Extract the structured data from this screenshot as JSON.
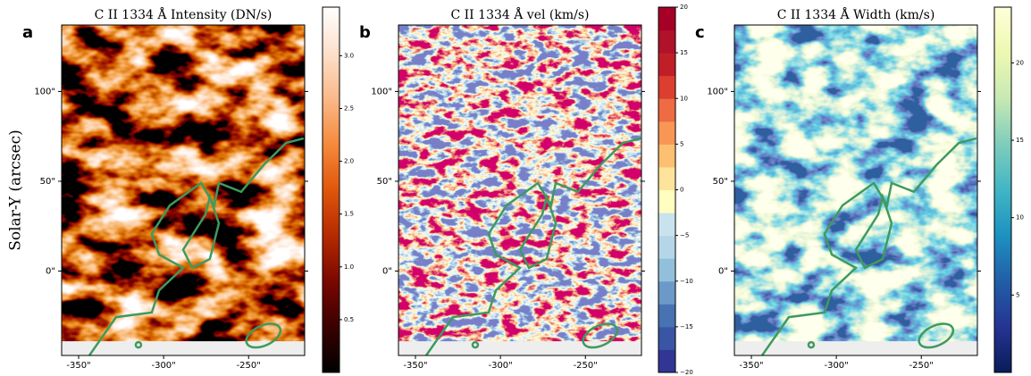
{
  "chart_data": [
    {
      "type": "image",
      "label": "a",
      "title": "C II 1334 Å Intensity (DN/s)",
      "ylabel": "Solar-Y (arcsec)",
      "xlim": [
        -360,
        -217
      ],
      "ylim": [
        -47,
        137
      ],
      "xticks": [
        {
          "value": -350,
          "label": "-350\""
        },
        {
          "value": -300,
          "label": "-300\""
        },
        {
          "value": -250,
          "label": "-250\""
        }
      ],
      "yticks": [
        {
          "value": 0,
          "label": "0\""
        },
        {
          "value": 50,
          "label": "50\""
        },
        {
          "value": 100,
          "label": "100\""
        }
      ],
      "colorbar": {
        "lim": [
          0,
          3.46
        ],
        "discrete": false,
        "ticks": [
          0.5,
          {
            "value": 1,
            "label": "1.0"
          },
          1.5,
          {
            "value": 2,
            "label": "2.0"
          },
          2.5,
          {
            "value": 3,
            "label": "3.0"
          }
        ],
        "colormap": [
          "#000000",
          "#3a0000",
          "#7a0800",
          "#b52a00",
          "#e0560c",
          "#f58a3c",
          "#fbb98a",
          "#fde0cc",
          "#ffffff"
        ]
      }
    },
    {
      "type": "image",
      "label": "b",
      "title": "C II 1334 Å vel (km/s)",
      "xlim": [
        -360,
        -217
      ],
      "ylim": [
        -47,
        137
      ],
      "xticks": [
        {
          "value": -350,
          "label": "-350\""
        },
        {
          "value": -300,
          "label": "-300\""
        },
        {
          "value": -250,
          "label": "-250\""
        }
      ],
      "yticks": [
        {
          "value": 0,
          "label": "0\""
        },
        {
          "value": 50,
          "label": "50\""
        },
        {
          "value": 100,
          "label": "100\""
        }
      ],
      "colorbar": {
        "lim": [
          -20,
          20
        ],
        "discrete": true,
        "ticks": [
          {
            "value": -20,
            "label": "−20"
          },
          {
            "value": -15,
            "label": "−15"
          },
          {
            "value": -10,
            "label": "−10"
          },
          {
            "value": -5,
            "label": "−5"
          },
          0,
          5,
          10,
          15,
          20
        ],
        "colormap": [
          "#313695",
          "#3a55a3",
          "#4873b3",
          "#6b9ac8",
          "#92c0dc",
          "#b4d6e8",
          "#c9e3ee",
          "#fffdbf",
          "#fee39a",
          "#fdbf71",
          "#f99656",
          "#ee6b44",
          "#dc3f2f",
          "#c11f27",
          "#b0122a",
          "#a50026"
        ]
      }
    },
    {
      "type": "image",
      "label": "c",
      "title": "C II 1334 Å Width (km/s)",
      "xlim": [
        -360,
        -217
      ],
      "ylim": [
        -47,
        137
      ],
      "xticks": [
        {
          "value": -350,
          "label": "-350\""
        },
        {
          "value": -300,
          "label": "-300\""
        },
        {
          "value": -250,
          "label": "-250\""
        }
      ],
      "yticks": [
        {
          "value": 0,
          "label": "0\""
        },
        {
          "value": 50,
          "label": "50\""
        },
        {
          "value": 100,
          "label": "100\""
        }
      ],
      "colorbar": {
        "lim": [
          0,
          23.6
        ],
        "discrete": false,
        "ticks": [
          5,
          10,
          15,
          20
        ],
        "colormap": [
          "#081d58",
          "#253494",
          "#225ea8",
          "#1d91c0",
          "#41b6c4",
          "#7fcdbb",
          "#c7e9b4",
          "#edf8b1",
          "#ffffd9"
        ]
      }
    }
  ]
}
